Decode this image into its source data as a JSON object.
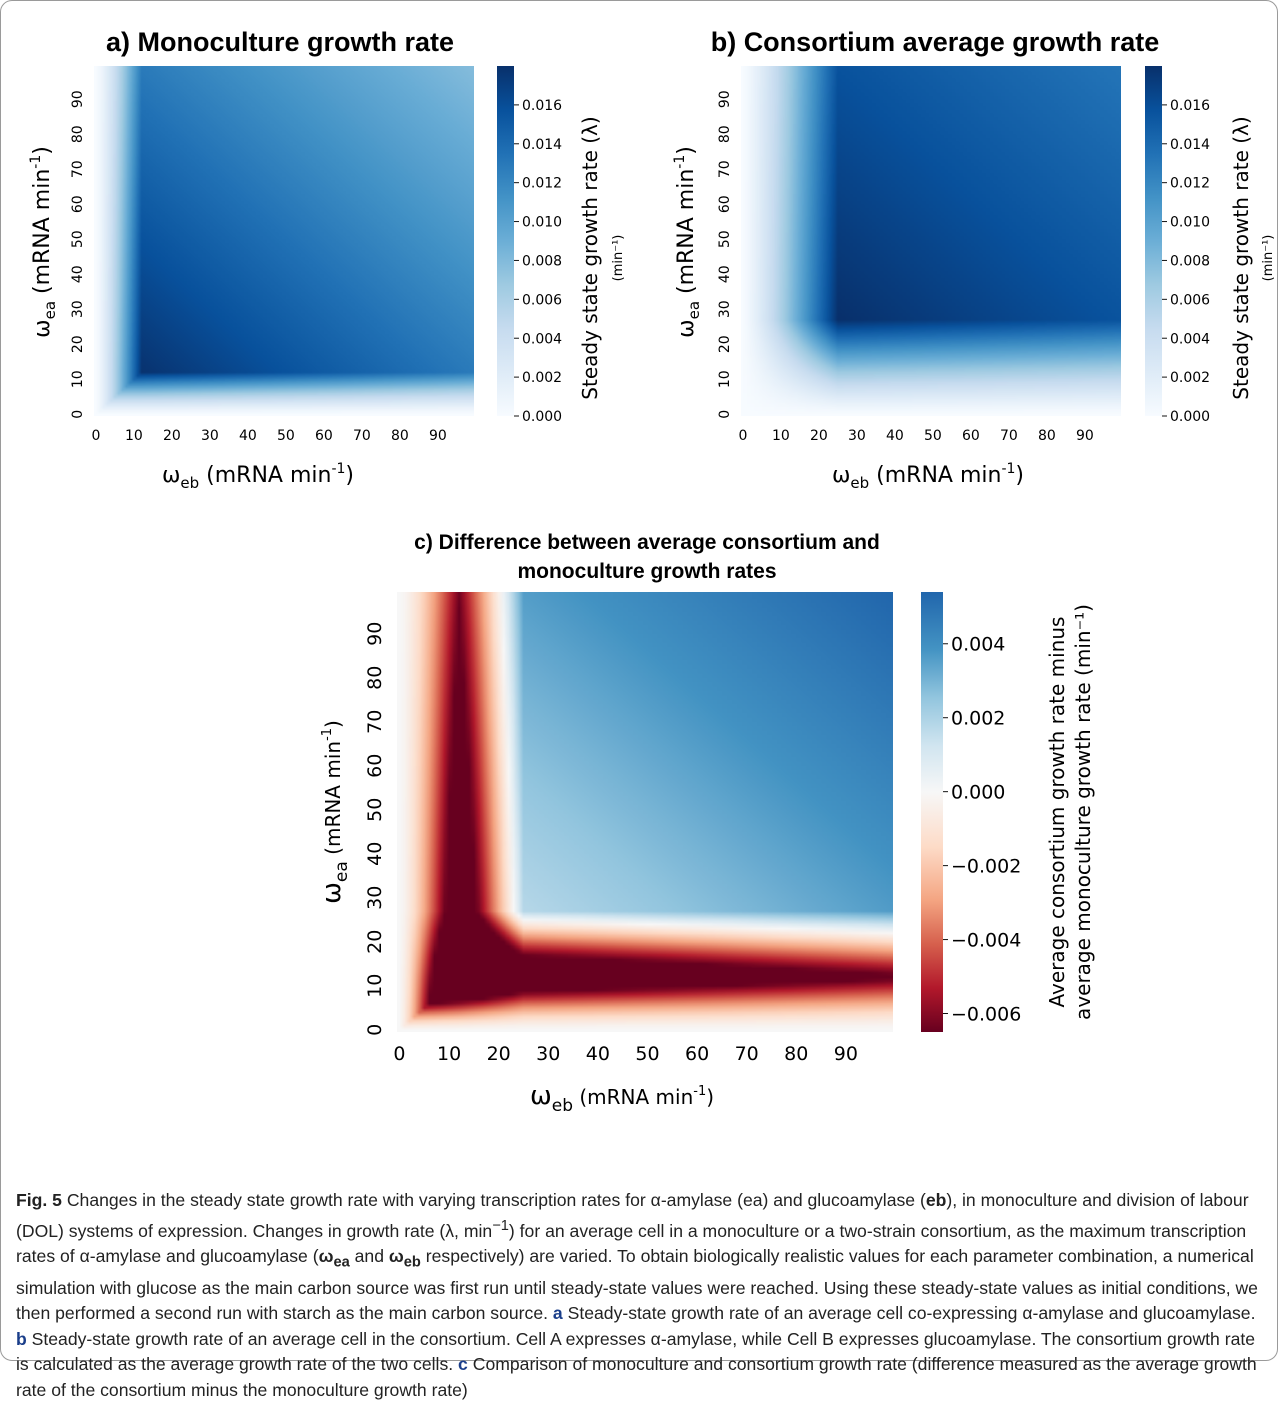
{
  "chart_data": [
    {
      "type": "heatmap",
      "panel": "a",
      "title": "a) Monoculture growth rate",
      "xlabel": "ω_eb (mRNA min⁻¹)",
      "ylabel": "ω_ea (mRNA min⁻¹)",
      "x_ticks": [
        0,
        10,
        20,
        30,
        40,
        50,
        60,
        70,
        80,
        90
      ],
      "y_ticks": [
        0,
        10,
        20,
        30,
        40,
        50,
        60,
        70,
        80,
        90
      ],
      "x_range": [
        0,
        99
      ],
      "y_range": [
        0,
        99
      ],
      "colormap": "Blues",
      "vmin": 0.0,
      "vmax": 0.018,
      "peak": {
        "x": 12,
        "y": 12,
        "value": 0.018
      },
      "colorbar_label": "Steady state growth rate (λ)",
      "colorbar_unit": "(min⁻¹)",
      "colorbar_ticks": [
        "0.000",
        "0.002",
        "0.004",
        "0.006",
        "0.008",
        "0.010",
        "0.012",
        "0.014",
        "0.016"
      ]
    },
    {
      "type": "heatmap",
      "panel": "b",
      "title": "b) Consortium average growth rate",
      "xlabel": "ω_eb (mRNA min⁻¹)",
      "ylabel": "ω_ea (mRNA min⁻¹)",
      "x_ticks": [
        0,
        10,
        20,
        30,
        40,
        50,
        60,
        70,
        80,
        90
      ],
      "y_ticks": [
        0,
        10,
        20,
        30,
        40,
        50,
        60,
        70,
        80,
        90
      ],
      "x_range": [
        0,
        99
      ],
      "y_range": [
        0,
        99
      ],
      "colormap": "Blues",
      "vmin": 0.0,
      "vmax": 0.018,
      "peak": {
        "x": 25,
        "y": 27,
        "value": 0.018
      },
      "colorbar_label": "Steady state growth rate (λ)",
      "colorbar_unit": "(min⁻¹)",
      "colorbar_ticks": [
        "0.000",
        "0.002",
        "0.004",
        "0.006",
        "0.008",
        "0.010",
        "0.012",
        "0.014",
        "0.016"
      ]
    },
    {
      "type": "heatmap",
      "panel": "c",
      "title": "c) Difference between average consortium and monoculture growth rates",
      "title_line1": "c) Difference between average consortium and",
      "title_line2": "monoculture growth rates",
      "xlabel": "ω_eb (mRNA min⁻¹)",
      "ylabel": "ω_ea (mRNA min⁻¹)",
      "x_ticks": [
        0,
        10,
        20,
        30,
        40,
        50,
        60,
        70,
        80,
        90
      ],
      "y_ticks": [
        0,
        10,
        20,
        30,
        40,
        50,
        60,
        70,
        80,
        90
      ],
      "x_range": [
        0,
        99
      ],
      "y_range": [
        0,
        99
      ],
      "colormap": "RdBu",
      "vmin": -0.0065,
      "vmax": 0.0054,
      "min_point": {
        "x": 12,
        "y": 14,
        "value": -0.0065
      },
      "colorbar_label_line1": "Average consortium growth rate minus",
      "colorbar_label_line2": "average monoculture growth rate (min⁻¹)",
      "colorbar_ticks": [
        "−0.006",
        "−0.004",
        "−0.002",
        "0.000",
        "0.002",
        "0.004"
      ]
    }
  ],
  "caption": {
    "fig_label": "Fig. 5",
    "text_1": "  Changes in the steady state growth rate with varying transcription rates for α-amylase (ea) and glucoamylase (",
    "eb": "eb",
    "text_2": "), in monoculture and division of labour (DOL) systems of expression. Changes in growth rate (λ, min",
    "sup": "−1",
    "text_3": ") for an average cell in a monoculture or a two-strain consortium, as the maximum transcription rates of α-amylase and glucoamylase (",
    "w_ea": "ω",
    "w_ea_sub": "ea",
    "and": " and ",
    "w_eb": "ω",
    "w_eb_sub": "eb",
    "text_4": " respectively) are varied. To obtain biologically realistic values for each parameter combination, a numerical simulation with glucose as the main carbon  source was first run until steady-state values were reached. Using these steady-state values as initial conditions, we then performed a second run with starch as the main carbon source. ",
    "a": "a",
    "text_a": " Steady-state growth rate of an average cell co-expressing α-amylase and glucoamylase. ",
    "b": "b",
    "text_b": " Steady-state growth rate of an average cell in the consortium. Cell A expresses α-amylase, while Cell B expresses glucoamylase. The consortium growth rate is calculated as the average growth rate of the two cells. ",
    "c": "c",
    "text_c": " Comparison of monoculture and consortium growth rate (difference measured as the average growth rate of the consortium minus the monoculture growth rate)"
  }
}
